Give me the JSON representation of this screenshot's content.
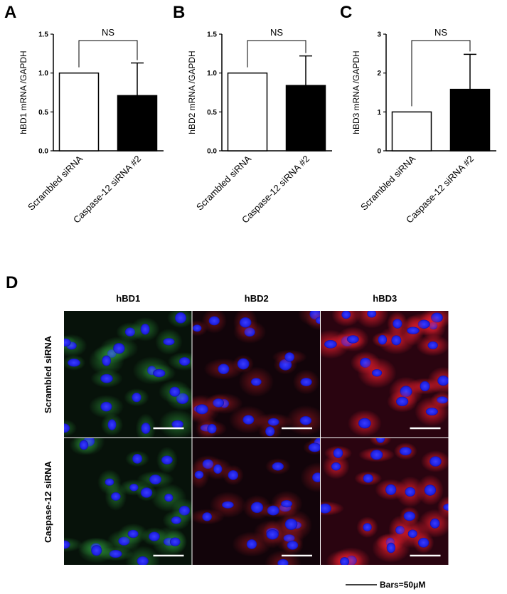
{
  "panel_labels": [
    "A",
    "B",
    "C",
    "D"
  ],
  "chart_data": [
    {
      "type": "bar",
      "ylabel": "hBD1 mRNA /GAPDH",
      "categories": [
        "Scrambled siRNA",
        "Caspase-12 siRNA #2"
      ],
      "values": [
        1.0,
        0.71
      ],
      "errors": [
        null,
        0.42
      ],
      "colors": [
        "#ffffff",
        "#000000"
      ],
      "annotation": "NS",
      "ylim": [
        0,
        1.5
      ],
      "yticks": [
        {
          "value": 0,
          "label": "0.0"
        },
        {
          "value": 0.5,
          "label": "0.5"
        },
        {
          "value": 1,
          "label": "1.0"
        },
        {
          "value": 1.5,
          "label": "1.5"
        }
      ]
    },
    {
      "type": "bar",
      "ylabel": "hBD2 mRNA /GAPDH",
      "categories": [
        "Scrambled siRNA",
        "Caspase-12 siRNA #2"
      ],
      "values": [
        1.0,
        0.84
      ],
      "errors": [
        null,
        0.38
      ],
      "colors": [
        "#ffffff",
        "#000000"
      ],
      "annotation": "NS",
      "ylim": [
        0,
        1.5
      ],
      "yticks": [
        {
          "value": 0,
          "label": "0.0"
        },
        {
          "value": 0.5,
          "label": "0.5"
        },
        {
          "value": 1,
          "label": "1.0"
        },
        {
          "value": 1.5,
          "label": "1.5"
        }
      ]
    },
    {
      "type": "bar",
      "ylabel": "hBD3 mRNA /GAPDH",
      "categories": [
        "Scrambled siRNA",
        "Caspase-12 siRNA #2"
      ],
      "values": [
        1.0,
        1.58
      ],
      "errors": [
        null,
        0.9
      ],
      "colors": [
        "#ffffff",
        "#000000"
      ],
      "annotation": "NS",
      "ylim": [
        0,
        3
      ],
      "yticks": [
        0,
        1,
        2,
        3
      ]
    }
  ],
  "images": {
    "columns": [
      "hBD1",
      "hBD2",
      "hBD3"
    ],
    "rows": [
      "Scrambled siRNA",
      "Caspase-12 siRNA"
    ],
    "scale_bar": "Bars=50μM"
  }
}
